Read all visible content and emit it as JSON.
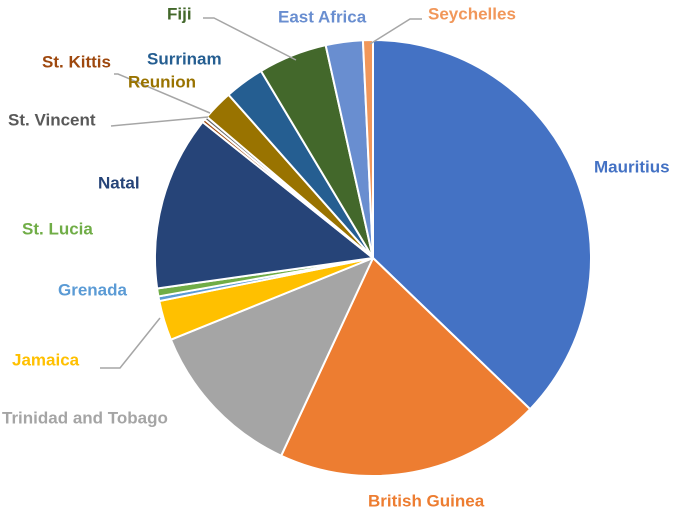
{
  "chart_data": {
    "type": "pie",
    "title": "",
    "legend": "none",
    "categories": [
      "Mauritius",
      "British Guinea",
      "Trinidad and Tobago",
      "Jamaica",
      "Grenada",
      "St. Lucia",
      "Natal",
      "St. Vincent",
      "St. Kittis",
      "Reunion",
      "Surrinam",
      "Fiji",
      "East Africa",
      "Seychelles"
    ],
    "values": [
      37.9,
      20.1,
      12.2,
      3.0,
      0.35,
      0.6,
      13.2,
      0.25,
      0.25,
      2.3,
      3.0,
      5.2,
      2.8,
      0.75
    ],
    "colors": [
      "#4472C4",
      "#ED7D31",
      "#A5A5A5",
      "#FFC000",
      "#5B9BD5",
      "#70AD47",
      "#264478",
      "#9E480E",
      "#636363",
      "#997300",
      "#255E91",
      "#43682B",
      "#698ED0",
      "#F1975A"
    ],
    "label_colors": [
      "#4472C4",
      "#ED7D31",
      "#A5A5A5",
      "#FFC000",
      "#5B9BD5",
      "#70AD47",
      "#264478",
      "#595959",
      "#9E480E",
      "#997300",
      "#255E91",
      "#43682B",
      "#698ED0",
      "#F1975A"
    ]
  }
}
